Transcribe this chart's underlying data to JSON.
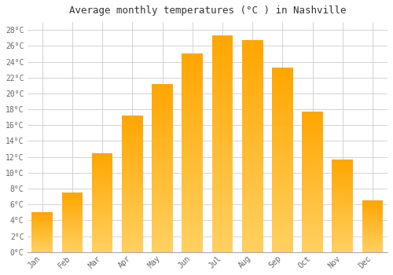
{
  "title": "Average monthly temperatures (°C ) in Nashville",
  "months": [
    "Jan",
    "Feb",
    "Mar",
    "Apr",
    "May",
    "Jun",
    "Jul",
    "Aug",
    "Sep",
    "Oct",
    "Nov",
    "Dec"
  ],
  "temperatures": [
    5.0,
    7.5,
    12.5,
    17.2,
    21.2,
    25.0,
    27.3,
    26.7,
    23.3,
    17.7,
    11.7,
    6.5
  ],
  "bar_color_bottom": "#FFD060",
  "bar_color_top": "#FFA500",
  "ylim": [
    0,
    29
  ],
  "yticks": [
    0,
    2,
    4,
    6,
    8,
    10,
    12,
    14,
    16,
    18,
    20,
    22,
    24,
    26,
    28
  ],
  "ytick_labels": [
    "0°C",
    "2°C",
    "4°C",
    "6°C",
    "8°C",
    "10°C",
    "12°C",
    "14°C",
    "16°C",
    "18°C",
    "20°C",
    "22°C",
    "24°C",
    "26°C",
    "28°C"
  ],
  "background_color": "#ffffff",
  "grid_color": "#cccccc",
  "title_fontsize": 9,
  "tick_fontsize": 7,
  "bar_width": 0.7
}
